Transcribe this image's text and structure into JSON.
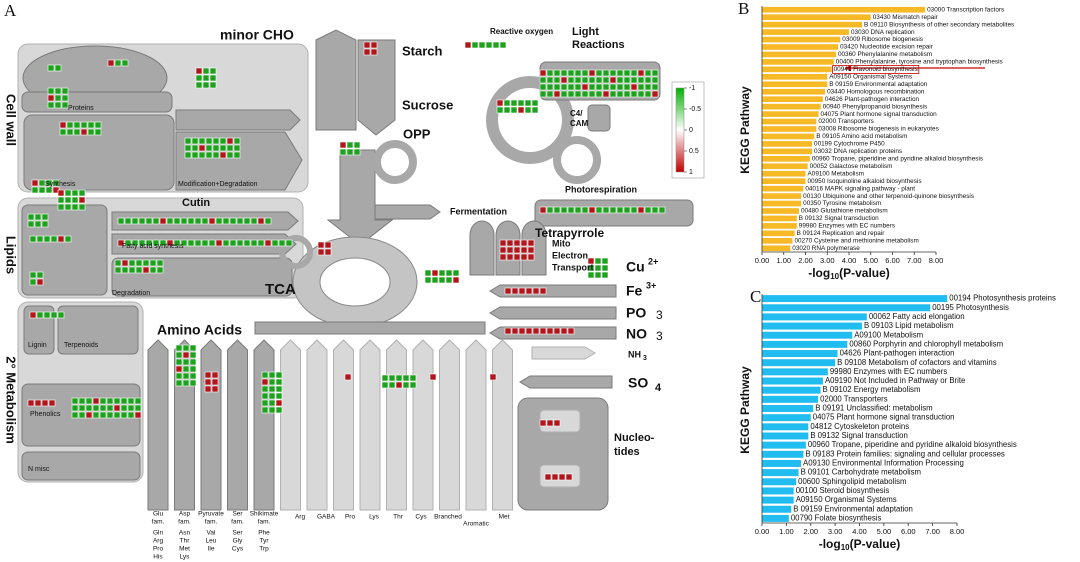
{
  "panel_a": {
    "panel": "A",
    "labels": [
      "minor CHO",
      "Starch",
      "Sucrose",
      "Reactive oxygen",
      "Light",
      "Reactions",
      "OPP",
      "C4/",
      "CAM",
      "Photorespiration",
      "Fermentation",
      "Tetrapyrrole",
      "Cell wall",
      "Proteins",
      "Synthesis",
      "Modification+Degradation",
      "Cutin",
      "Fatty acid synthesis",
      "Degradation",
      "Lipids",
      "Lignin",
      "Terpenoids",
      "Phenolics",
      "N misc",
      "2° Metabolism",
      "TCA",
      "Amino Acids",
      "Mito",
      "Electron",
      "Transport",
      "Cu",
      "2+",
      "Fe",
      "3+",
      "PO",
      "3",
      "NO",
      "3",
      "NH",
      "3",
      "SO",
      "4",
      "Nucleo-",
      "tides"
    ],
    "amino_groups": [
      [
        "Glu",
        "fam.",
        "Gln",
        "Arg",
        "Pro",
        "His"
      ],
      [
        "Asp",
        "fam.",
        "Asn",
        "Thr",
        "Met",
        "Lys"
      ],
      [
        "Pyruvate",
        "fam.",
        "Val",
        "Leu",
        "Ile"
      ],
      [
        "Ser",
        "fam.",
        "Ser",
        "Gly",
        "Cys"
      ],
      [
        "Shikimate",
        "fam.",
        "Phe",
        "Tyr",
        "Trp"
      ]
    ],
    "amino_columns": [
      "Arg",
      "GABA",
      "Pro",
      "Lys",
      "Thr",
      "Cys",
      "Branched",
      "Aromatic",
      "Met"
    ],
    "colorbar": {
      "ticks": [
        -1,
        -0.5,
        0,
        0.5,
        1
      ],
      "colors": [
        "#00b000",
        "#ffffff",
        "#c00000"
      ]
    }
  },
  "chart_data": [
    {
      "type": "barh",
      "panel": "B",
      "color": "#f7b926",
      "ylabel": "KEGG Pathway",
      "xlabel": "-log",
      "xlabel_sub": "10",
      "xlabel_rest": "(P-value)",
      "categories": [
        "03000 Transcription factors",
        "03430 Mismatch repair",
        "B 09110 Biosynthesis of other secondary metabolites",
        "03030 DNA replication",
        "03009 Ribosome biogenesis",
        "03420 Nucleotide excision repair",
        "00360 Phenylalanine metabolism",
        "00400 Phenylalanine, tyrosine and tryptophan biosynthesis",
        "00941 Flavonoid biosynthesis",
        "A09150 Organismal Systems",
        "B 09159 Environmental adaptation",
        "03440 Homologous recombination",
        "04626 Plant-pathogen interaction",
        "00940 Phenylpropanoid biosynthesis",
        "04075 Plant hormone signal transduction",
        "02000 Transporters",
        "03008 Ribosome biogenesis in eukaryotes",
        "B 09105 Amino acid metabolism",
        "00199 Cytochrome P450",
        "03032 DNA replication proteins",
        "00960 Tropane, piperidine and pyridine alkaloid biosynthesis",
        "00052 Galactose metabolism",
        "A09100 Metabolism",
        "00950 Isoquinoline alkaloid biosynthesis",
        "04016 MAPK signaling pathway - plant",
        "00130 Ubiquinone and other terpenoid-quinone biosynthesis",
        "00350 Tyrosine metabolism",
        "00480 Glutathione metabolism",
        "B 09132 Signal transduction",
        "99980 Enzymes with EC numbers",
        "B 09124 Replication and repair",
        "00270 Cysteine and methionine metabolism",
        "03020 RNA polymerase"
      ],
      "values": [
        7.5,
        5.0,
        4.6,
        4.0,
        3.6,
        3.5,
        3.4,
        3.3,
        3.2,
        3.0,
        3.0,
        2.9,
        2.8,
        2.7,
        2.6,
        2.5,
        2.5,
        2.4,
        2.3,
        2.3,
        2.2,
        2.1,
        2.0,
        2.0,
        1.9,
        1.8,
        1.8,
        1.7,
        1.6,
        1.6,
        1.5,
        1.4,
        1.3
      ],
      "highlight": 8,
      "xlim": [
        0,
        8
      ],
      "xticks": [
        {
          "value": 0,
          "label": "0.00"
        },
        {
          "value": 1,
          "label": "1.00"
        },
        {
          "value": 2,
          "label": "2.00"
        },
        {
          "value": 3,
          "label": "3.00"
        },
        {
          "value": 4,
          "label": "4.00"
        },
        {
          "value": 5,
          "label": "5.00"
        },
        {
          "value": 6,
          "label": "6.00"
        },
        {
          "value": 7,
          "label": "7.00"
        },
        {
          "value": 8,
          "label": "8.00"
        }
      ]
    },
    {
      "type": "barh",
      "panel": "C",
      "color": "#22bdf0",
      "ylabel": "KEGG Pathway",
      "xlabel": "-log",
      "xlabel_sub": "10",
      "xlabel_rest": "(P-value)",
      "categories": [
        "00194 Photosynthesis proteins",
        "00195 Photosynthesis",
        "00062 Fatty acid elongation",
        "B 09103 Lipid metabolism",
        "A09100 Metabolism",
        "00860 Porphyrin and chlorophyll metabolism",
        "04626 Plant-pathogen interaction",
        "B 09108 Metabolism of cofactors and vitamins",
        "99980 Enzymes with EC numbers",
        "A09190 Not Included in Pathway or Brite",
        "B 09102 Energy metabolism",
        "02000 Transporters",
        "B 09191 Unclassified: metabolism",
        "04075 Plant hormone signal transduction",
        "04812 Cytoskeleton proteins",
        "B 09132 Signal transduction",
        "00960 Tropane, piperidine and pyridine alkaloid biosynthesis",
        "B 09183 Protein families: signaling and cellular processes",
        "A09130 Environmental Information Processing",
        "B 09101 Carbohydrate metabolism",
        "00600 Sphingolipid metabolism",
        "00100 Steroid biosynthesis",
        "A09150 Organismal Systems",
        "B 09159 Environmental adaptation",
        "00790 Folate biosynthesis"
      ],
      "values": [
        7.6,
        6.9,
        4.3,
        4.1,
        3.7,
        3.5,
        3.1,
        3.0,
        2.7,
        2.5,
        2.4,
        2.3,
        2.1,
        2.0,
        1.9,
        1.9,
        1.8,
        1.7,
        1.6,
        1.5,
        1.4,
        1.3,
        1.3,
        1.2,
        1.1
      ],
      "xlim": [
        0,
        8
      ],
      "xticks": [
        {
          "value": 0,
          "label": "0.00"
        },
        {
          "value": 1,
          "label": "1.00"
        },
        {
          "value": 2,
          "label": "2.00"
        },
        {
          "value": 3,
          "label": "3.00"
        },
        {
          "value": 4,
          "label": "4.00"
        },
        {
          "value": 5,
          "label": "5.00"
        },
        {
          "value": 6,
          "label": "6.00"
        },
        {
          "value": 7,
          "label": "7.00"
        },
        {
          "value": 8,
          "label": "8.00"
        }
      ]
    }
  ]
}
